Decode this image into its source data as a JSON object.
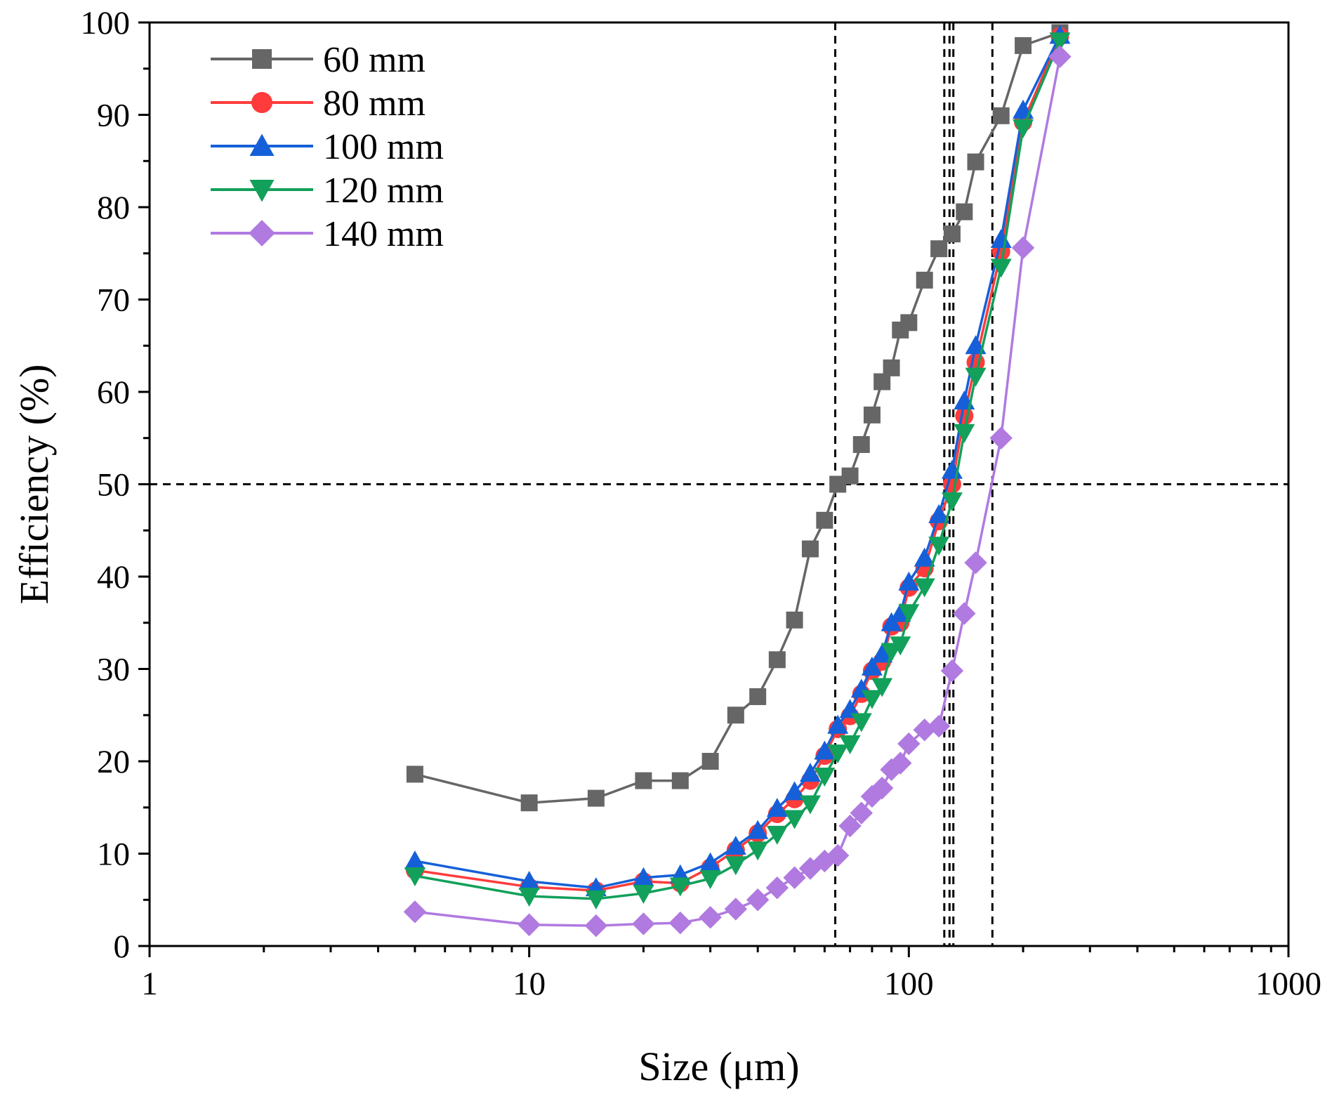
{
  "chart_data": {
    "type": "line",
    "xlabel": "Size (μm)",
    "ylabel": "Efficiency (%)",
    "x_scale": "log",
    "xlim": [
      1,
      1000
    ],
    "ylim": [
      0,
      100
    ],
    "x_ticks": [
      1,
      10,
      100,
      1000
    ],
    "x_tick_labels": [
      "1",
      "10",
      "100",
      "1000"
    ],
    "y_ticks": [
      0,
      10,
      20,
      30,
      40,
      50,
      60,
      70,
      80,
      90,
      100
    ],
    "y_tick_labels": [
      "0",
      "10",
      "20",
      "30",
      "40",
      "50",
      "60",
      "70",
      "80",
      "90",
      "100"
    ],
    "grid": false,
    "legend_position": "top-left",
    "reference_lines": {
      "horizontal": [
        50
      ],
      "vertical": [
        64,
        124,
        128,
        131,
        166
      ]
    },
    "series": [
      {
        "name": "60 mm",
        "color": "#666666",
        "marker": "square",
        "points": [
          [
            5,
            18.6
          ],
          [
            10,
            15.5
          ],
          [
            15,
            16.0
          ],
          [
            20,
            17.9
          ],
          [
            25,
            17.9
          ],
          [
            30,
            20.0
          ],
          [
            35,
            25.0
          ],
          [
            40,
            27.0
          ],
          [
            45,
            31.0
          ],
          [
            50,
            35.3
          ],
          [
            55,
            43.0
          ],
          [
            60,
            46.1
          ],
          [
            65,
            50.0
          ],
          [
            70,
            50.9
          ],
          [
            75,
            54.3
          ],
          [
            80,
            57.5
          ],
          [
            85,
            61.1
          ],
          [
            90,
            62.6
          ],
          [
            95,
            66.7
          ],
          [
            100,
            67.5
          ],
          [
            110,
            72.1
          ],
          [
            120,
            75.5
          ],
          [
            130,
            77.1
          ],
          [
            140,
            79.5
          ],
          [
            150,
            84.9
          ],
          [
            175,
            89.9
          ],
          [
            200,
            97.5
          ],
          [
            250,
            98.9
          ]
        ]
      },
      {
        "name": "80 mm",
        "color": "#ff3b3b",
        "marker": "circle",
        "points": [
          [
            5,
            8.2
          ],
          [
            10,
            6.4
          ],
          [
            15,
            6.0
          ],
          [
            20,
            7.0
          ],
          [
            25,
            6.8
          ],
          [
            30,
            8.5
          ],
          [
            35,
            10.4
          ],
          [
            40,
            12.2
          ],
          [
            45,
            14.3
          ],
          [
            50,
            15.9
          ],
          [
            55,
            17.9
          ],
          [
            60,
            20.6
          ],
          [
            65,
            23.5
          ],
          [
            70,
            24.9
          ],
          [
            75,
            27.3
          ],
          [
            80,
            29.8
          ],
          [
            85,
            30.8
          ],
          [
            90,
            34.6
          ],
          [
            95,
            35.0
          ],
          [
            100,
            38.8
          ],
          [
            110,
            40.9
          ],
          [
            120,
            46.0
          ],
          [
            130,
            50.0
          ],
          [
            140,
            57.4
          ],
          [
            150,
            63.2
          ],
          [
            175,
            75.2
          ],
          [
            200,
            89.2
          ],
          [
            250,
            98.5
          ]
        ]
      },
      {
        "name": "100 mm",
        "color": "#1560d8",
        "marker": "triangle-up",
        "points": [
          [
            5,
            9.2
          ],
          [
            10,
            7.0
          ],
          [
            15,
            6.3
          ],
          [
            20,
            7.4
          ],
          [
            25,
            7.7
          ],
          [
            30,
            9.0
          ],
          [
            35,
            10.8
          ],
          [
            40,
            12.5
          ],
          [
            45,
            14.9
          ],
          [
            50,
            16.7
          ],
          [
            55,
            18.7
          ],
          [
            60,
            21.1
          ],
          [
            65,
            23.9
          ],
          [
            70,
            25.6
          ],
          [
            75,
            27.8
          ],
          [
            80,
            30.2
          ],
          [
            85,
            31.6
          ],
          [
            90,
            35.0
          ],
          [
            95,
            36.0
          ],
          [
            100,
            39.4
          ],
          [
            110,
            42.0
          ],
          [
            120,
            46.7
          ],
          [
            130,
            51.5
          ],
          [
            140,
            59.0
          ],
          [
            150,
            65.0
          ],
          [
            175,
            76.5
          ],
          [
            200,
            90.5
          ],
          [
            250,
            98.6
          ]
        ]
      },
      {
        "name": "120 mm",
        "color": "#12a05a",
        "marker": "triangle-down",
        "points": [
          [
            5,
            7.6
          ],
          [
            10,
            5.4
          ],
          [
            15,
            5.1
          ],
          [
            20,
            5.7
          ],
          [
            25,
            6.5
          ],
          [
            30,
            7.3
          ],
          [
            35,
            8.8
          ],
          [
            40,
            10.4
          ],
          [
            45,
            12.1
          ],
          [
            50,
            13.8
          ],
          [
            55,
            15.4
          ],
          [
            60,
            18.4
          ],
          [
            65,
            20.9
          ],
          [
            70,
            21.9
          ],
          [
            75,
            24.3
          ],
          [
            80,
            26.8
          ],
          [
            85,
            28.1
          ],
          [
            90,
            31.9
          ],
          [
            95,
            32.6
          ],
          [
            100,
            36.1
          ],
          [
            110,
            38.9
          ],
          [
            120,
            43.4
          ],
          [
            130,
            48.2
          ],
          [
            140,
            55.6
          ],
          [
            150,
            61.7
          ],
          [
            175,
            73.5
          ],
          [
            200,
            88.6
          ],
          [
            250,
            98.0
          ]
        ]
      },
      {
        "name": "140 mm",
        "color": "#b07ae0",
        "marker": "diamond",
        "points": [
          [
            5,
            3.7
          ],
          [
            10,
            2.3
          ],
          [
            15,
            2.2
          ],
          [
            20,
            2.4
          ],
          [
            25,
            2.5
          ],
          [
            30,
            3.1
          ],
          [
            35,
            4.0
          ],
          [
            40,
            5.0
          ],
          [
            45,
            6.3
          ],
          [
            50,
            7.4
          ],
          [
            55,
            8.4
          ],
          [
            60,
            9.2
          ],
          [
            65,
            9.8
          ],
          [
            70,
            13.0
          ],
          [
            75,
            14.4
          ],
          [
            80,
            16.2
          ],
          [
            85,
            17.1
          ],
          [
            90,
            19.1
          ],
          [
            95,
            19.8
          ],
          [
            100,
            21.9
          ],
          [
            110,
            23.4
          ],
          [
            120,
            23.8
          ],
          [
            130,
            29.8
          ],
          [
            140,
            36.0
          ],
          [
            150,
            41.5
          ],
          [
            175,
            55.0
          ],
          [
            200,
            75.6
          ],
          [
            250,
            96.3
          ]
        ]
      }
    ]
  }
}
